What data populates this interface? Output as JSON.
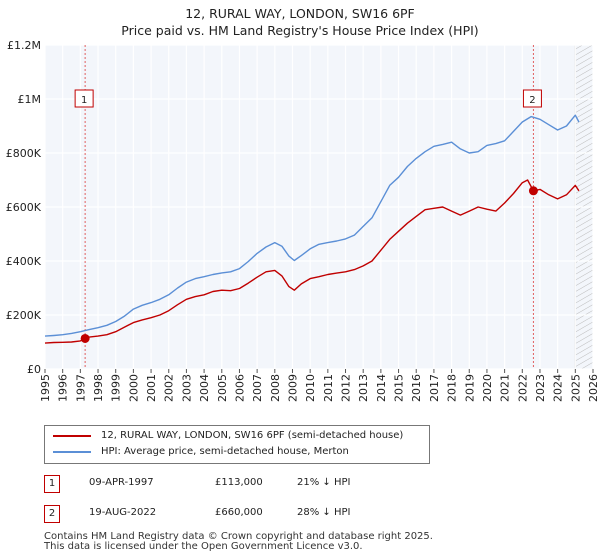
{
  "header": {
    "title": "12, RURAL WAY, LONDON, SW16 6PF",
    "subtitle": "Price paid vs. HM Land Registry's House Price Index (HPI)"
  },
  "legend": {
    "items": [
      {
        "label": "12, RURAL WAY, LONDON, SW16 6PF (semi-detached house)",
        "color": "#c00000"
      },
      {
        "label": "HPI: Average price, semi-detached house, Merton",
        "color": "#5b8fd6"
      }
    ]
  },
  "transactions": [
    {
      "id": "1",
      "date": "09-APR-1997",
      "price": "£113,000",
      "hpi_diff": "21% ↓ HPI"
    },
    {
      "id": "2",
      "date": "19-AUG-2022",
      "price": "£660,000",
      "hpi_diff": "28% ↓ HPI"
    }
  ],
  "footer": {
    "line1": "Contains HM Land Registry data © Crown copyright and database right 2025.",
    "line2": "This data is licensed under the Open Government Licence v3.0."
  },
  "chart_data": {
    "type": "line",
    "x_range": [
      1995,
      2026
    ],
    "ylim": [
      0,
      1200000
    ],
    "grid": true,
    "y_ticks": [
      {
        "value": 0,
        "label": "£0"
      },
      {
        "value": 200000,
        "label": "£200K"
      },
      {
        "value": 400000,
        "label": "£400K"
      },
      {
        "value": 600000,
        "label": "£600K"
      },
      {
        "value": 800000,
        "label": "£800K"
      },
      {
        "value": 1000000,
        "label": "£1M"
      },
      {
        "value": 1200000,
        "label": "£1.2M"
      }
    ],
    "x_ticks": [
      "1995",
      "1996",
      "1997",
      "1998",
      "1999",
      "2000",
      "2001",
      "2002",
      "2003",
      "2004",
      "2005",
      "2006",
      "2007",
      "2008",
      "2009",
      "2010",
      "2011",
      "2012",
      "2013",
      "2014",
      "2015",
      "2016",
      "2017",
      "2018",
      "2019",
      "2020",
      "2021",
      "2022",
      "2023",
      "2024",
      "2025",
      "2026"
    ],
    "hatch_from": 2025.0,
    "series": [
      {
        "name": "12, RURAL WAY, LONDON, SW16 6PF (semi-detached house)",
        "color": "#c00000",
        "x": [
          1995.0,
          1995.5,
          1996.0,
          1996.5,
          1997.0,
          1997.27,
          1997.5,
          1998.0,
          1998.5,
          1999.0,
          1999.5,
          2000.0,
          2000.5,
          2001.0,
          2001.5,
          2002.0,
          2002.5,
          2003.0,
          2003.5,
          2004.0,
          2004.5,
          2005.0,
          2005.5,
          2006.0,
          2006.5,
          2007.0,
          2007.5,
          2008.0,
          2008.4,
          2008.8,
          2009.1,
          2009.5,
          2010.0,
          2010.5,
          2011.0,
          2011.5,
          2012.0,
          2012.5,
          2013.0,
          2013.5,
          2014.0,
          2014.5,
          2015.0,
          2015.5,
          2016.0,
          2016.5,
          2017.0,
          2017.5,
          2018.0,
          2018.5,
          2019.0,
          2019.5,
          2020.0,
          2020.5,
          2021.0,
          2021.5,
          2022.0,
          2022.3,
          2022.63,
          2023.0,
          2023.5,
          2024.0,
          2024.5,
          2025.0,
          2025.2
        ],
        "values": [
          96000,
          98000,
          99000,
          100000,
          104000,
          113000,
          118000,
          122000,
          127000,
          138000,
          155000,
          172000,
          182000,
          190000,
          200000,
          216000,
          238000,
          258000,
          268000,
          275000,
          287000,
          292000,
          290000,
          298000,
          318000,
          340000,
          360000,
          365000,
          345000,
          305000,
          292000,
          315000,
          335000,
          342000,
          350000,
          355000,
          360000,
          368000,
          382000,
          400000,
          440000,
          480000,
          510000,
          540000,
          565000,
          590000,
          595000,
          600000,
          585000,
          570000,
          585000,
          600000,
          592000,
          585000,
          615000,
          650000,
          690000,
          700000,
          660000,
          665000,
          645000,
          630000,
          645000,
          680000,
          660000
        ]
      },
      {
        "name": "HPI: Average price, semi-detached house, Merton",
        "color": "#5b8fd6",
        "x": [
          1995.0,
          1995.5,
          1996.0,
          1996.5,
          1997.0,
          1997.5,
          1998.0,
          1998.5,
          1999.0,
          1999.5,
          2000.0,
          2000.5,
          2001.0,
          2001.5,
          2002.0,
          2002.5,
          2003.0,
          2003.5,
          2004.0,
          2004.5,
          2005.0,
          2005.5,
          2006.0,
          2006.5,
          2007.0,
          2007.5,
          2008.0,
          2008.4,
          2008.8,
          2009.1,
          2009.5,
          2010.0,
          2010.5,
          2011.0,
          2011.5,
          2012.0,
          2012.5,
          2013.0,
          2013.5,
          2014.0,
          2014.5,
          2015.0,
          2015.5,
          2016.0,
          2016.5,
          2017.0,
          2017.5,
          2018.0,
          2018.5,
          2019.0,
          2019.5,
          2020.0,
          2020.5,
          2021.0,
          2021.5,
          2022.0,
          2022.5,
          2023.0,
          2023.5,
          2024.0,
          2024.5,
          2025.0,
          2025.2
        ],
        "values": [
          122000,
          124000,
          127000,
          132000,
          138000,
          146000,
          153000,
          162000,
          176000,
          196000,
          222000,
          236000,
          246000,
          258000,
          275000,
          300000,
          322000,
          335000,
          342000,
          350000,
          356000,
          360000,
          372000,
          398000,
          428000,
          452000,
          468000,
          455000,
          418000,
          402000,
          420000,
          445000,
          462000,
          468000,
          474000,
          482000,
          496000,
          528000,
          560000,
          620000,
          680000,
          710000,
          750000,
          780000,
          805000,
          825000,
          832000,
          840000,
          815000,
          800000,
          805000,
          828000,
          835000,
          845000,
          880000,
          915000,
          935000,
          925000,
          905000,
          885000,
          900000,
          940000,
          915000
        ]
      }
    ],
    "markers": [
      {
        "id": "1",
        "x": 1997.27,
        "y": 113000
      },
      {
        "id": "2",
        "x": 2022.63,
        "y": 660000
      }
    ]
  }
}
